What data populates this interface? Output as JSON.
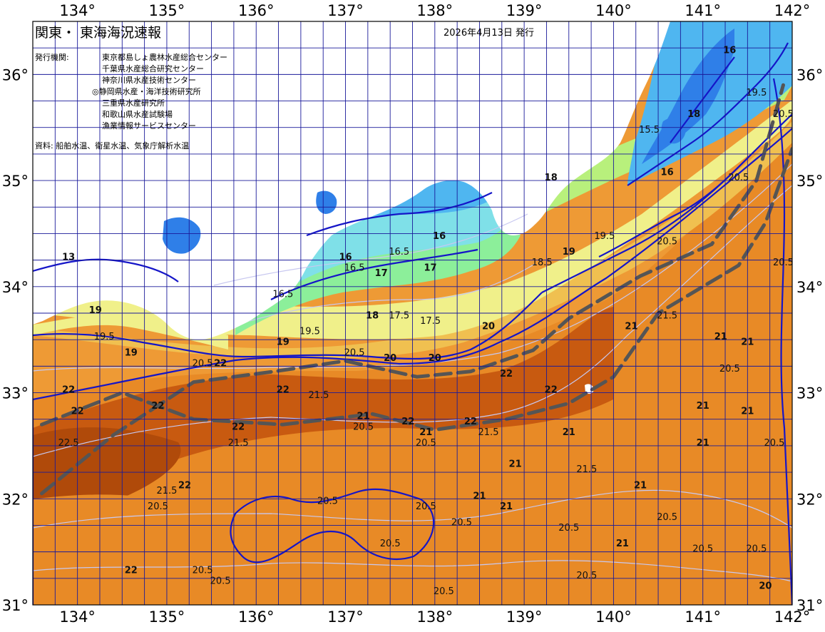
{
  "header": {
    "title": "関東・ 東海海況速報",
    "issue_date": "2026年4月13日 発行"
  },
  "issuers": {
    "label": "発行機関:",
    "items": [
      "東京都島しょ農林水産総合センター",
      "千葉県水産総合研究センター",
      "神奈川県水産技術センター",
      "◎静岡県水産・海洋技術研究所",
      "三重県水産研究所",
      "和歌山県水産試験場",
      "漁業情報サービスセンター"
    ]
  },
  "source_note": "資料: 船舶水温、衛星水温、気象庁解析水温",
  "axes": {
    "longitudes": [
      "134°",
      "135°",
      "136°",
      "137°",
      "138°",
      "139°",
      "140°",
      "141°",
      "142°"
    ],
    "latitudes": [
      "36°",
      "35°",
      "34°",
      "33°",
      "32°",
      "31°"
    ],
    "lon_range": [
      133.5,
      142.0
    ],
    "lat_range": [
      31.0,
      36.5
    ]
  },
  "colors": {
    "land": "#ffffff",
    "grid": "#1a1a9a",
    "integer_isotherm": "#1515c8",
    "half_isotherm": "#c8c8f0",
    "kuroshio_axis": "#555555",
    "t15": "#2f7fe8",
    "t16": "#4fb6f0",
    "t17": "#7fe0e8",
    "t17_5": "#8cef9a",
    "t18": "#b8f07c",
    "t19": "#f0f08a",
    "t20": "#f0c050",
    "t20_5": "#ee9a35",
    "t21": "#e88a26",
    "t21_5": "#e07a1e",
    "t22": "#c85a10",
    "t22_5": "#b04a0a"
  },
  "temperature_labels": [
    {
      "text": "16",
      "lon": 140.6,
      "lat": 35.05
    },
    {
      "text": "15.5",
      "lon": 140.4,
      "lat": 35.45
    },
    {
      "text": "16",
      "lon": 141.3,
      "lat": 36.2
    },
    {
      "text": "16",
      "lon": 137.0,
      "lat": 34.25
    },
    {
      "text": "16.5",
      "lon": 137.1,
      "lat": 34.15
    },
    {
      "text": "16.5",
      "lon": 137.6,
      "lat": 34.3
    },
    {
      "text": "17",
      "lon": 137.4,
      "lat": 34.1
    },
    {
      "text": "17.5",
      "lon": 137.6,
      "lat": 33.7
    },
    {
      "text": "18",
      "lon": 137.3,
      "lat": 33.7
    },
    {
      "text": "17.5",
      "lon": 137.95,
      "lat": 33.65
    },
    {
      "text": "16",
      "lon": 138.05,
      "lat": 34.45
    },
    {
      "text": "17",
      "lon": 137.95,
      "lat": 34.15
    },
    {
      "text": "16.5",
      "lon": 136.3,
      "lat": 33.9
    },
    {
      "text": "18",
      "lon": 139.3,
      "lat": 35.0
    },
    {
      "text": "18",
      "lon": 140.9,
      "lat": 35.6
    },
    {
      "text": "18.5",
      "lon": 139.2,
      "lat": 34.2
    },
    {
      "text": "19",
      "lon": 139.5,
      "lat": 34.3
    },
    {
      "text": "19.5",
      "lon": 139.9,
      "lat": 34.45
    },
    {
      "text": "19.5",
      "lon": 141.6,
      "lat": 35.8
    },
    {
      "text": "19",
      "lon": 134.2,
      "lat": 33.75
    },
    {
      "text": "19.5",
      "lon": 134.3,
      "lat": 33.5
    },
    {
      "text": "19",
      "lon": 134.6,
      "lat": 33.35
    },
    {
      "text": "19.5",
      "lon": 136.6,
      "lat": 33.55
    },
    {
      "text": "19",
      "lon": 136.3,
      "lat": 33.45
    },
    {
      "text": "20",
      "lon": 137.5,
      "lat": 33.3
    },
    {
      "text": "20",
      "lon": 138.0,
      "lat": 33.3
    },
    {
      "text": "20",
      "lon": 138.6,
      "lat": 33.6
    },
    {
      "text": "20.5",
      "lon": 137.1,
      "lat": 33.35
    },
    {
      "text": "20.5",
      "lon": 135.4,
      "lat": 33.25
    },
    {
      "text": "20.5",
      "lon": 140.6,
      "lat": 34.4
    },
    {
      "text": "20.5",
      "lon": 141.4,
      "lat": 35.0
    },
    {
      "text": "20.5",
      "lon": 141.9,
      "lat": 35.6
    },
    {
      "text": "21",
      "lon": 140.2,
      "lat": 33.6
    },
    {
      "text": "21.5",
      "lon": 140.6,
      "lat": 33.7
    },
    {
      "text": "21",
      "lon": 141.2,
      "lat": 33.5
    },
    {
      "text": "21",
      "lon": 141.0,
      "lat": 32.85
    },
    {
      "text": "20.5",
      "lon": 141.3,
      "lat": 33.2
    },
    {
      "text": "21.5",
      "lon": 138.6,
      "lat": 32.6
    },
    {
      "text": "21",
      "lon": 138.9,
      "lat": 32.3
    },
    {
      "text": "21",
      "lon": 139.5,
      "lat": 32.6
    },
    {
      "text": "21.5",
      "lon": 139.7,
      "lat": 32.25
    },
    {
      "text": "21",
      "lon": 138.5,
      "lat": 32.0
    },
    {
      "text": "20.5",
      "lon": 138.3,
      "lat": 31.75
    },
    {
      "text": "21",
      "lon": 138.8,
      "lat": 31.9
    },
    {
      "text": "20.5",
      "lon": 136.8,
      "lat": 31.95
    },
    {
      "text": "20.5",
      "lon": 137.9,
      "lat": 31.9
    },
    {
      "text": "20.5",
      "lon": 137.2,
      "lat": 32.65
    },
    {
      "text": "21",
      "lon": 137.2,
      "lat": 32.75
    },
    {
      "text": "21.5",
      "lon": 136.7,
      "lat": 32.95
    },
    {
      "text": "22",
      "lon": 136.3,
      "lat": 33.0
    },
    {
      "text": "22",
      "lon": 135.6,
      "lat": 33.25
    },
    {
      "text": "22",
      "lon": 134.9,
      "lat": 32.85
    },
    {
      "text": "22",
      "lon": 133.9,
      "lat": 33.0
    },
    {
      "text": "22",
      "lon": 135.8,
      "lat": 32.65
    },
    {
      "text": "21.5",
      "lon": 135.8,
      "lat": 32.5
    },
    {
      "text": "22",
      "lon": 137.7,
      "lat": 32.7
    },
    {
      "text": "22",
      "lon": 138.4,
      "lat": 32.7
    },
    {
      "text": "22",
      "lon": 138.8,
      "lat": 33.15
    },
    {
      "text": "22",
      "lon": 139.3,
      "lat": 33.0
    },
    {
      "text": "21",
      "lon": 137.9,
      "lat": 32.6
    },
    {
      "text": "20.5",
      "lon": 137.9,
      "lat": 32.5
    },
    {
      "text": "21",
      "lon": 140.3,
      "lat": 32.1
    },
    {
      "text": "21",
      "lon": 141.0,
      "lat": 32.5
    },
    {
      "text": "20.5",
      "lon": 139.5,
      "lat": 31.7
    },
    {
      "text": "20.5",
      "lon": 139.7,
      "lat": 31.25
    },
    {
      "text": "21",
      "lon": 140.1,
      "lat": 31.55
    },
    {
      "text": "20.5",
      "lon": 140.6,
      "lat": 31.8
    },
    {
      "text": "20.5",
      "lon": 141.0,
      "lat": 31.5
    },
    {
      "text": "20.5",
      "lon": 141.6,
      "lat": 31.5
    },
    {
      "text": "20.5",
      "lon": 138.1,
      "lat": 31.1
    },
    {
      "text": "20.5",
      "lon": 137.5,
      "lat": 31.55
    },
    {
      "text": "20.5",
      "lon": 134.9,
      "lat": 31.9
    },
    {
      "text": "20.5",
      "lon": 135.4,
      "lat": 31.3
    },
    {
      "text": "20.5",
      "lon": 135.6,
      "lat": 31.2
    },
    {
      "text": "22",
      "lon": 134.0,
      "lat": 32.8
    },
    {
      "text": "22.5",
      "lon": 133.9,
      "lat": 32.5
    },
    {
      "text": "22",
      "lon": 135.2,
      "lat": 32.1
    },
    {
      "text": "21.5",
      "lon": 135.0,
      "lat": 32.05
    },
    {
      "text": "13",
      "lon": 133.9,
      "lat": 34.25
    },
    {
      "text": "22",
      "lon": 134.6,
      "lat": 31.3
    },
    {
      "text": "20",
      "lon": 141.7,
      "lat": 31.15
    },
    {
      "text": "21",
      "lon": 141.5,
      "lat": 33.45
    },
    {
      "text": "21",
      "lon": 141.5,
      "lat": 32.8
    },
    {
      "text": "20.5",
      "lon": 141.8,
      "lat": 32.5
    },
    {
      "text": "20.5",
      "lon": 141.9,
      "lat": 34.2
    }
  ],
  "kuroshio_axes": [
    {
      "name": "north",
      "points": [
        [
          133.6,
          32.05
        ],
        [
          134.4,
          32.6
        ],
        [
          135.3,
          33.1
        ],
        [
          136.2,
          33.2
        ],
        [
          137.0,
          33.3
        ],
        [
          137.8,
          33.15
        ],
        [
          138.4,
          33.2
        ],
        [
          139.1,
          33.4
        ],
        [
          139.5,
          33.7
        ],
        [
          140.3,
          34.1
        ],
        [
          141.1,
          34.4
        ],
        [
          141.6,
          35.0
        ],
        [
          141.9,
          35.9
        ]
      ]
    },
    {
      "name": "south",
      "points": [
        [
          133.6,
          32.7
        ],
        [
          134.5,
          33.0
        ],
        [
          135.3,
          32.75
        ],
        [
          136.3,
          32.7
        ],
        [
          137.3,
          32.8
        ],
        [
          138.0,
          32.65
        ],
        [
          138.8,
          32.75
        ],
        [
          139.5,
          32.9
        ],
        [
          140.0,
          33.15
        ],
        [
          140.5,
          33.75
        ],
        [
          141.0,
          34.0
        ],
        [
          141.4,
          34.2
        ],
        [
          141.7,
          34.6
        ],
        [
          142.0,
          35.3
        ]
      ]
    }
  ]
}
